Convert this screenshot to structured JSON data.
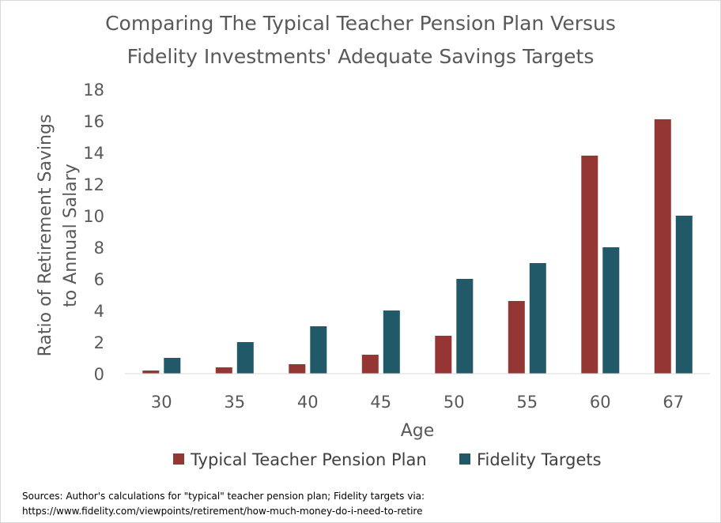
{
  "chart_data": {
    "type": "bar",
    "title": "Comparing The Typical Teacher Pension Plan Versus Fidelity Investments' Adequate Savings Targets",
    "title_lines": [
      "Comparing The Typical Teacher Pension Plan Versus",
      "Fidelity Investments' Adequate Savings Targets"
    ],
    "xlabel": "Age",
    "ylabel": "Ratio of Retirement Savings to Annual Salary",
    "ylabel_lines": [
      "Ratio of Retirement Savings",
      "to Annual Salary"
    ],
    "categories": [
      "30",
      "35",
      "40",
      "45",
      "50",
      "55",
      "60",
      "67"
    ],
    "ylim": [
      0,
      18
    ],
    "yticks": [
      0,
      2,
      4,
      6,
      8,
      10,
      12,
      14,
      16,
      18
    ],
    "grid": false,
    "legend_position": "bottom",
    "series": [
      {
        "name": "Typical Teacher Pension Plan",
        "color": "#943634",
        "values": [
          0.2,
          0.4,
          0.6,
          1.2,
          2.4,
          4.6,
          13.8,
          16.1
        ]
      },
      {
        "name": "Fidelity Targets",
        "color": "#215968",
        "values": [
          1,
          2,
          3,
          4,
          6,
          7,
          8,
          10
        ]
      }
    ]
  },
  "source_lines": [
    "Sources: Author's calculations for \"typical\" teacher pension plan; Fidelity targets via:",
    "https://www.fidelity.com/viewpoints/retirement/how-much-money-do-i-need-to-retire"
  ]
}
